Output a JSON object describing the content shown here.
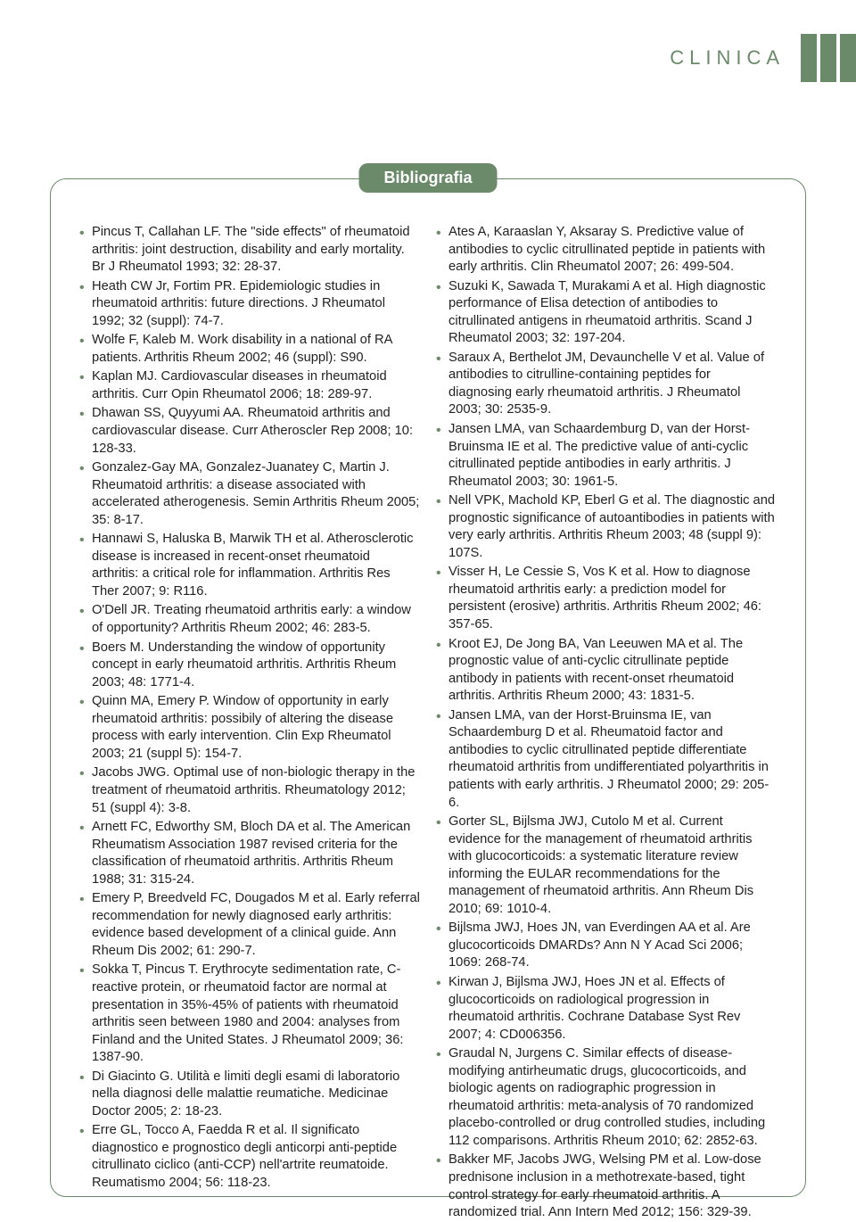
{
  "header": {
    "label": "CLINICA",
    "bar_color": "#6a8a6a",
    "text_color": "#6a8a6a"
  },
  "badge": {
    "label": "Bibliografia",
    "bg_color": "#6a8a6a",
    "text_color": "#ffffff"
  },
  "box": {
    "border_color": "#6a8a6a",
    "border_radius": 18
  },
  "bullet_color": "#6a8a6a",
  "body_fontsize": 14.7,
  "references_left": [
    "Pincus T, Callahan LF. The \"side effects\" of rheumatoid arthritis: joint destruction, disability and early mortality. Br J Rheumatol 1993; 32: 28-37.",
    "Heath CW Jr, Fortim PR. Epidemiologic studies in rheumatoid arthritis: future directions. J Rheumatol 1992; 32 (suppl): 74-7.",
    "Wolfe F, Kaleb M. Work disability in a national of RA patients. Arthritis Rheum 2002; 46 (suppl): S90.",
    "Kaplan MJ. Cardiovascular diseases in rheumatoid arthritis. Curr Opin Rheumatol 2006; 18: 289-97.",
    "Dhawan SS, Quyyumi AA. Rheumatoid arthritis and cardiovascular disease. Curr Atheroscler Rep 2008; 10: 128-33.",
    "Gonzalez-Gay MA, Gonzalez-Juanatey C, Martin J. Rheumatoid arthritis: a disease associated with accelerated atherogenesis. Semin Arthritis Rheum 2005; 35: 8-17.",
    "Hannawi S, Haluska B, Marwik TH et al. Atherosclerotic disease is increased in recent-onset rheumatoid arthritis: a critical role for inflammation. Arthritis Res Ther 2007; 9: R116.",
    "O'Dell JR. Treating rheumatoid arthritis early: a window of opportunity? Arthritis Rheum 2002; 46: 283-5.",
    "Boers M. Understanding the window of opportunity concept in early rheumatoid arthritis. Arthritis Rheum 2003; 48: 1771-4.",
    "Quinn MA, Emery P. Window of opportunity in early rheumatoid arthritis: possibily of altering the disease process with early intervention. Clin Exp Rheumatol 2003; 21 (suppl 5): 154-7.",
    "Jacobs JWG. Optimal use of non-biologic therapy in the treatment of rheumatoid arthritis. Rheumatology 2012; 51 (suppl 4): 3-8.",
    "Arnett FC, Edworthy SM, Bloch DA et al. The American Rheumatism Association 1987 revised criteria for the classification of rheumatoid arthritis. Arthritis Rheum 1988; 31: 315-24.",
    "Emery P, Breedveld FC, Dougados M et al. Early referral recommendation for newly diagnosed early arthritis: evidence based development of a clinical guide. Ann Rheum Dis 2002; 61: 290-7.",
    "Sokka T, Pincus T. Erythrocyte sedimentation rate, C-reactive protein, or rheumatoid factor are normal at presentation in 35%-45% of patients with rheumatoid arthritis seen between 1980 and 2004: analyses from Finland and the United States. J Rheumatol 2009; 36: 1387-90.",
    "Di Giacinto G. Utilità e limiti degli esami di laboratorio nella diagnosi delle malattie reumatiche. Medicinae Doctor 2005; 2: 18-23.",
    "Erre GL, Tocco A, Faedda R et al. Il significato diagnostico e prognostico degli anticorpi anti-peptide citrullinato ciclico (anti-CCP) nell'artrite reumatoide. Reumatismo 2004; 56: 118-23."
  ],
  "references_right": [
    "Ates A, Karaaslan Y, Aksaray S. Predictive value of antibodies to cyclic citrullinated peptide in patients with early arthritis. Clin Rheumatol 2007; 26: 499-504.",
    "Suzuki K, Sawada T, Murakami A et al. High diagnostic performance of Elisa detection of antibodies to citrullinated antigens in rheumatoid arthritis. Scand J Rheumatol 2003; 32: 197-204.",
    "Saraux A, Berthelot JM, Devaunchelle V et al. Value of antibodies to citrulline-containing peptides for diagnosing early rheumatoid arthritis. J Rheumatol 2003; 30: 2535-9.",
    "Jansen LMA, van Schaardemburg D, van der Horst-Bruinsma IE et al. The predictive value of anti-cyclic citrullinated peptide antibodies in early arthritis. J Rheumatol 2003; 30: 1961-5.",
    "Nell VPK, Machold KP, Eberl G et al. The diagnostic and prognostic significance of autoantibodies in patients with very early arthritis. Arthritis Rheum 2003; 48 (suppl 9): 107S.",
    "Visser H, Le Cessie S, Vos K et al. How to diagnose rheumatoid arthritis early: a prediction model for persistent (erosive) arthritis. Arthritis Rheum 2002; 46: 357-65.",
    "Kroot EJ, De Jong BA, Van Leeuwen MA et al. The prognostic value of anti-cyclic citrullinate peptide antibody in patients with recent-onset rheumatoid arthritis. Arthritis Rheum 2000; 43: 1831-5.",
    "Jansen LMA, van der Horst-Bruinsma IE, van Schaardemburg D et al. Rheumatoid factor and antibodies to cyclic citrullinated peptide differentiate rheumatoid arthritis from undifferentiated polyarthritis in patients with early arthritis. J Rheumatol 2000; 29: 205-6.",
    "Gorter SL, Bijlsma JWJ, Cutolo M et al. Current evidence for the management of rheumatoid arthritis with glucocorticoids: a systematic literature review informing the EULAR recommendations for the management of rheumatoid arthritis. Ann Rheum Dis 2010; 69: 1010-4.",
    "Bijlsma JWJ, Hoes JN, van Everdingen AA et al. Are glucocorticoids DMARDs? Ann N Y Acad Sci 2006; 1069: 268-74.",
    "Kirwan J, Bijlsma JWJ, Hoes JN et al. Effects of glucocorticoids on radiological progression in rheumatoid arthritis. Cochrane Database Syst Rev 2007; 4: CD006356.",
    "Graudal N, Jurgens C. Similar effects of disease-modifying antirheumatic drugs, glucocorticoids, and biologic agents on radiographic progression in rheumatoid arthritis: meta-analysis of 70 randomized placebo-controlled or drug controlled studies, including 112 comparisons. Arthritis Rheum 2010; 62: 2852-63.",
    "Bakker MF, Jacobs JWG, Welsing PM et al. Low-dose prednisone inclusion in a methotrexate-based, tight control strategy for early rheumatoid arthritis. A randomized trial. Ann Intern Med 2012; 156: 329-39."
  ]
}
